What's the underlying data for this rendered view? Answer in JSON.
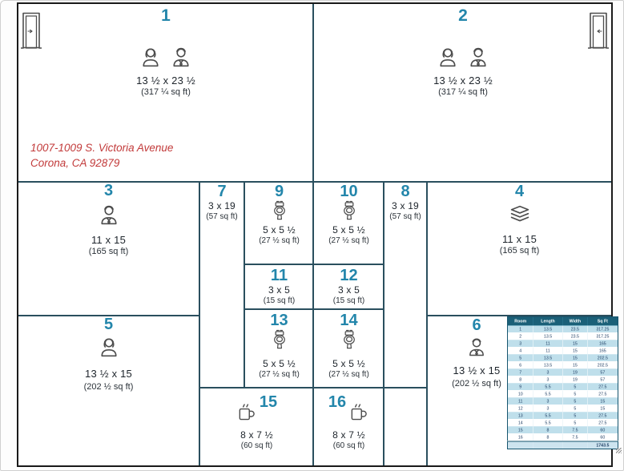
{
  "address": {
    "line1": "1007-1009 S. Victoria Avenue",
    "line2": "Corona, CA 92879"
  },
  "colors": {
    "room_number": "#2386ab",
    "address_text": "#c23a3a",
    "outer_wall": "#1a1a1a",
    "inner_wall": "#2a4f5e",
    "table_header_bg": "#1b6078",
    "table_row_alt": "#bfdfeb",
    "table_text": "#17375e"
  },
  "rooms": [
    {
      "number": "1",
      "dims": "13 ½ x 23 ½",
      "area": "(317 ¼ sq ft)",
      "icons": [
        "person-female-icon",
        "person-male-icon"
      ]
    },
    {
      "number": "2",
      "dims": "13 ½ x 23 ½",
      "area": "(317 ¼ sq ft)",
      "icons": [
        "person-female-icon",
        "person-male-icon"
      ]
    },
    {
      "number": "3",
      "dims": "11 x 15",
      "area": "(165 sq ft)",
      "icons": [
        "person-male-icon"
      ]
    },
    {
      "number": "4",
      "dims": "11 x 15",
      "area": "(165 sq ft)",
      "icons": [
        "layers-icon"
      ]
    },
    {
      "number": "5",
      "dims": "13 ½ x 15",
      "area": "(202 ½ sq ft)",
      "icons": [
        "person-female-icon"
      ]
    },
    {
      "number": "6",
      "dims": "13 ½ x 15",
      "area": "(202 ½ sq ft)",
      "icons": [
        "person-male-icon"
      ]
    },
    {
      "number": "7",
      "dims": "3 x 19",
      "area": "(57 sq ft)",
      "icons": []
    },
    {
      "number": "8",
      "dims": "3 x 19",
      "area": "(57 sq ft)",
      "icons": []
    },
    {
      "number": "9",
      "dims": "5 x 5 ½",
      "area": "(27 ½ sq ft)",
      "icons": [
        "toilet-icon"
      ]
    },
    {
      "number": "10",
      "dims": "5 x 5 ½",
      "area": "(27 ½ sq ft)",
      "icons": [
        "toilet-icon"
      ]
    },
    {
      "number": "11",
      "dims": "3 x 5",
      "area": "(15 sq ft)",
      "icons": []
    },
    {
      "number": "12",
      "dims": "3 x 5",
      "area": "(15 sq ft)",
      "icons": []
    },
    {
      "number": "13",
      "dims": "5 x 5 ½",
      "area": "(27 ½ sq ft)",
      "icons": [
        "toilet-icon"
      ]
    },
    {
      "number": "14",
      "dims": "5 x 5 ½",
      "area": "(27 ½ sq ft)",
      "icons": [
        "toilet-icon"
      ]
    },
    {
      "number": "15",
      "dims": "8 x 7 ½",
      "area": "(60 sq ft)",
      "icons": [
        "coffee-mug-icon"
      ]
    },
    {
      "number": "16",
      "dims": "8 x 7 ½",
      "area": "(60 sq ft)",
      "icons": [
        "coffee-mug-icon"
      ]
    }
  ],
  "plan_table": {
    "headers": [
      "Room",
      "Length",
      "Width",
      "Sq Ft"
    ],
    "rows": [
      [
        "1",
        "13.5",
        "23.5",
        "317.25"
      ],
      [
        "2",
        "13.5",
        "23.5",
        "317.25"
      ],
      [
        "3",
        "11",
        "15",
        "165"
      ],
      [
        "4",
        "11",
        "15",
        "165"
      ],
      [
        "5",
        "13.5",
        "15",
        "202.5"
      ],
      [
        "6",
        "13.5",
        "15",
        "202.5"
      ],
      [
        "7",
        "3",
        "19",
        "57"
      ],
      [
        "8",
        "3",
        "19",
        "57"
      ],
      [
        "9",
        "5.5",
        "5",
        "27.5"
      ],
      [
        "10",
        "5.5",
        "5",
        "27.5"
      ],
      [
        "11",
        "3",
        "5",
        "15"
      ],
      [
        "12",
        "3",
        "5",
        "15"
      ],
      [
        "13",
        "5.5",
        "5",
        "27.5"
      ],
      [
        "14",
        "5.5",
        "5",
        "27.5"
      ],
      [
        "15",
        "8",
        "7.5",
        "60"
      ],
      [
        "16",
        "8",
        "7.5",
        "60"
      ]
    ],
    "total_sqft": "1743.5"
  }
}
